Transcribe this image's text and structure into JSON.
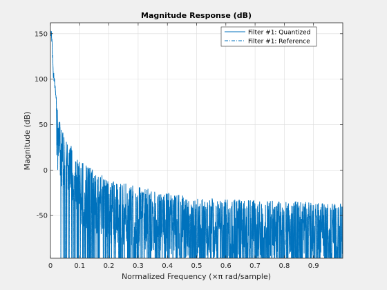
{
  "chart_data": {
    "type": "line",
    "title": "Magnitude Response (dB)",
    "xlabel": "Normalized Frequency (×π rad/sample)",
    "ylabel": "Magnitude (dB)",
    "xlim": [
      0,
      1
    ],
    "ylim": [
      -97,
      162
    ],
    "xticks": [
      0,
      0.1,
      0.2,
      0.3,
      0.4,
      0.5,
      0.6,
      0.7,
      0.8,
      0.9
    ],
    "xtick_labels": [
      "0",
      "0.1",
      "0.2",
      "0.3",
      "0.4",
      "0.5",
      "0.6",
      "0.7",
      "0.8",
      "0.9"
    ],
    "yticks": [
      150,
      100,
      50,
      0,
      -50
    ],
    "ytick_labels": [
      "150",
      "100",
      "50",
      "0",
      "-50"
    ],
    "grid": true,
    "legend_position": "top-right",
    "colors": {
      "series": "#0072bd",
      "axes": "#262626",
      "grid": "#dcdcdc",
      "figure_bg": "#f0f0f0",
      "axes_bg": "#ffffff"
    },
    "envelope": {
      "x": [
        0.0,
        0.005,
        0.01,
        0.02,
        0.03,
        0.05,
        0.08,
        0.1,
        0.15,
        0.2,
        0.3,
        0.4,
        0.5,
        0.6,
        0.7,
        0.8,
        0.9,
        1.0
      ],
      "max": [
        162,
        150,
        112,
        85,
        55,
        38,
        22,
        10,
        0,
        -10,
        -18,
        -25,
        -30,
        -32,
        -33,
        -34,
        -35,
        -36
      ]
    },
    "series": [
      {
        "name": "Filter #1: Quantized",
        "style": "solid"
      },
      {
        "name": "Filter #1: Reference",
        "style": "dashdot"
      }
    ]
  }
}
